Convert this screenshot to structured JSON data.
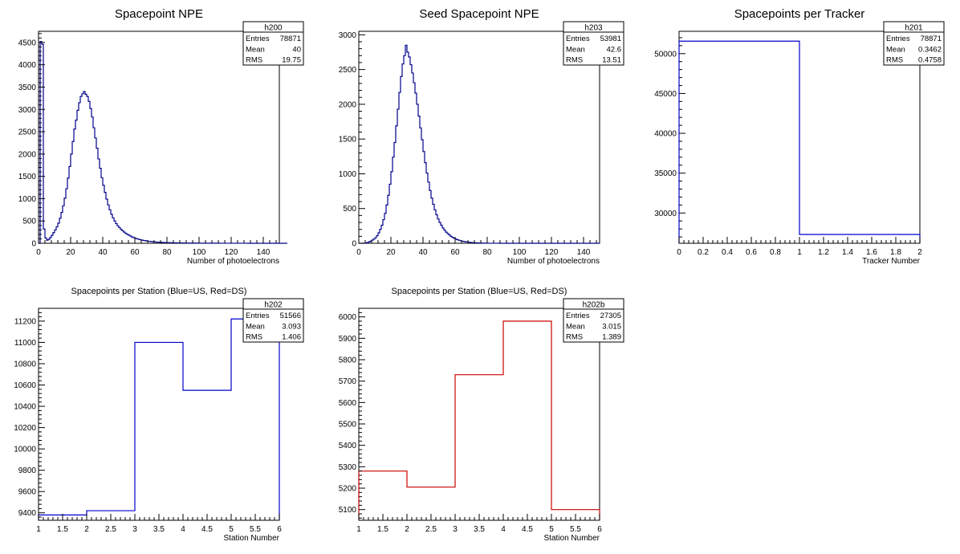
{
  "chart_data": [
    {
      "type": "histogram",
      "title": "Spacepoint NPE",
      "xlabel": "Number of photoelectrons",
      "ylabel": "",
      "xlim": [
        0,
        150
      ],
      "ylim": [
        0,
        4750
      ],
      "xticks": [
        0,
        20,
        40,
        60,
        80,
        100,
        120,
        140
      ],
      "yticks": [
        0,
        500,
        1000,
        1500,
        2000,
        2500,
        3000,
        3500,
        4000,
        4500
      ],
      "line_color": "#00008b",
      "stats": {
        "name": "h200",
        "rows": [
          [
            "Entries",
            "78871"
          ],
          [
            "Mean",
            "40"
          ],
          [
            "RMS",
            "19.75"
          ]
        ]
      },
      "bin_edges_start": 0,
      "bin_width": 1,
      "values": [
        0,
        4520,
        4460,
        320,
        120,
        70,
        90,
        130,
        180,
        240,
        300,
        370,
        450,
        560,
        690,
        840,
        1010,
        1220,
        1460,
        1720,
        2000,
        2280,
        2560,
        2760,
        2980,
        3150,
        3290,
        3350,
        3400,
        3340,
        3290,
        3180,
        3020,
        2830,
        2590,
        2360,
        2130,
        1890,
        1680,
        1470,
        1300,
        1140,
        990,
        860,
        750,
        650,
        570,
        500,
        440,
        390,
        350,
        310,
        280,
        250,
        220,
        200,
        180,
        160,
        140,
        125,
        110,
        100,
        90,
        80,
        72,
        64,
        58,
        52,
        46,
        42,
        38,
        34,
        30,
        27,
        24,
        22,
        20,
        18,
        16,
        15,
        14,
        13,
        12,
        11,
        10,
        9,
        9,
        8,
        8,
        7,
        7,
        6,
        6,
        5,
        5,
        5,
        4,
        4,
        4,
        3,
        3,
        3,
        3,
        3,
        2,
        2,
        2,
        2,
        2,
        2,
        2,
        2,
        2,
        1,
        1,
        1,
        1,
        1,
        1,
        1,
        1,
        1,
        1,
        1,
        1,
        1,
        1,
        1,
        1,
        1,
        0,
        0,
        0,
        0,
        0,
        0,
        0,
        0,
        0,
        0,
        0,
        0,
        0,
        0,
        0,
        0,
        0,
        0,
        0,
        0,
        0,
        0,
        0,
        0,
        0
      ]
    },
    {
      "type": "histogram",
      "title": "Seed Spacepoint NPE",
      "xlabel": "Number of photoelectrons",
      "ylabel": "",
      "xlim": [
        0,
        150
      ],
      "ylim": [
        0,
        3050
      ],
      "xticks": [
        0,
        20,
        40,
        60,
        80,
        100,
        120,
        140
      ],
      "yticks": [
        0,
        500,
        1000,
        1500,
        2000,
        2500,
        3000
      ],
      "line_color": "#00008b",
      "stats": {
        "name": "h203",
        "rows": [
          [
            "Entries",
            "53981"
          ],
          [
            "Mean",
            "42.6"
          ],
          [
            "RMS",
            "13.51"
          ]
        ]
      },
      "bin_edges_start": 0,
      "bin_width": 1,
      "values": [
        0,
        0,
        0,
        2,
        5,
        10,
        20,
        30,
        45,
        60,
        80,
        110,
        150,
        200,
        260,
        340,
        430,
        550,
        690,
        850,
        1030,
        1240,
        1450,
        1690,
        1930,
        2170,
        2400,
        2580,
        2700,
        2850,
        2750,
        2680,
        2570,
        2450,
        2310,
        2160,
        2000,
        1830,
        1660,
        1490,
        1320,
        1160,
        1010,
        880,
        760,
        650,
        560,
        480,
        410,
        350,
        300,
        260,
        220,
        190,
        160,
        140,
        120,
        100,
        85,
        72,
        61,
        52,
        44,
        37,
        31,
        26,
        22,
        18,
        15,
        12,
        10,
        8,
        7,
        6,
        5,
        4,
        3,
        3,
        2,
        2,
        2,
        1,
        1,
        1,
        1,
        1,
        1,
        0,
        0,
        0,
        0,
        0,
        0,
        0,
        0,
        0,
        0,
        0,
        0,
        0,
        0,
        0,
        0,
        0,
        0,
        0,
        0,
        0,
        0,
        0,
        0,
        0,
        0,
        0,
        0,
        0,
        0,
        0,
        0,
        0,
        0,
        0,
        0,
        0,
        0,
        0,
        0,
        0,
        0,
        0,
        0,
        0,
        0,
        0,
        0,
        0,
        0,
        0,
        0,
        0,
        0,
        0,
        0,
        0,
        0,
        0,
        0,
        0,
        0,
        0
      ]
    },
    {
      "type": "histogram",
      "title": "Spacepoints per Tracker",
      "xlabel": "Tracker Number",
      "ylabel": "",
      "xlim": [
        0,
        2
      ],
      "ylim": [
        26200,
        52800
      ],
      "xticks": [
        0,
        0.2,
        0.4,
        0.6,
        0.8,
        1,
        1.2,
        1.4,
        1.6,
        1.8,
        2
      ],
      "xtick_labels": [
        "0",
        "0.2",
        "0.4",
        "0.6",
        "0.8",
        "1",
        "1.2",
        "1.4",
        "1.6",
        "1.8",
        "2"
      ],
      "yticks": [
        30000,
        35000,
        40000,
        45000,
        50000
      ],
      "line_color": "#0000cc",
      "stats": {
        "name": "h201",
        "rows": [
          [
            "Entries",
            "78871"
          ],
          [
            "Mean",
            "0.3462"
          ],
          [
            "RMS",
            "0.4758"
          ]
        ]
      },
      "bin_edges": [
        0,
        1,
        2
      ],
      "values": [
        51566,
        27305
      ]
    },
    {
      "type": "histogram",
      "title": "Spacepoints per Station (Blue=US, Red=DS)",
      "xlabel": "Station Number",
      "ylabel": "",
      "xlim": [
        1,
        6
      ],
      "ylim": [
        9330,
        11320
      ],
      "xticks": [
        1,
        1.5,
        2,
        2.5,
        3,
        3.5,
        4,
        4.5,
        5,
        5.5,
        6
      ],
      "xtick_labels": [
        "1",
        "1.5",
        "2",
        "2.5",
        "3",
        "3.5",
        "4",
        "4.5",
        "5",
        "5.5",
        "6"
      ],
      "yticks": [
        9400,
        9600,
        9800,
        10000,
        10200,
        10400,
        10600,
        10800,
        11000,
        11200
      ],
      "line_color": "#0000cc",
      "stats": {
        "name": "h202",
        "rows": [
          [
            "Entries",
            "51566"
          ],
          [
            "Mean",
            "3.093"
          ],
          [
            "RMS",
            "1.406"
          ]
        ]
      },
      "bin_edges": [
        1,
        2,
        3,
        4,
        5,
        6
      ],
      "values": [
        9380,
        9420,
        11000,
        10550,
        11220
      ]
    },
    {
      "type": "histogram",
      "title": "Spacepoints per Station (Blue=US, Red=DS)",
      "xlabel": "Station Number",
      "ylabel": "",
      "xlim": [
        1,
        6
      ],
      "ylim": [
        5050,
        6040
      ],
      "xticks": [
        1,
        1.5,
        2,
        2.5,
        3,
        3.5,
        4,
        4.5,
        5,
        5.5,
        6
      ],
      "xtick_labels": [
        "1",
        "1.5",
        "2",
        "2.5",
        "3",
        "3.5",
        "4",
        "4.5",
        "5",
        "5.5",
        "6"
      ],
      "yticks": [
        5100,
        5200,
        5300,
        5400,
        5500,
        5600,
        5700,
        5800,
        5900,
        6000
      ],
      "line_color": "#cc0000",
      "stats": {
        "name": "h202b",
        "rows": [
          [
            "Entries",
            "27305"
          ],
          [
            "Mean",
            "3.015"
          ],
          [
            "RMS",
            "1.389"
          ]
        ]
      },
      "bin_edges": [
        1,
        2,
        3,
        4,
        5,
        6
      ],
      "values": [
        5280,
        5205,
        5730,
        5980,
        5100
      ]
    }
  ]
}
